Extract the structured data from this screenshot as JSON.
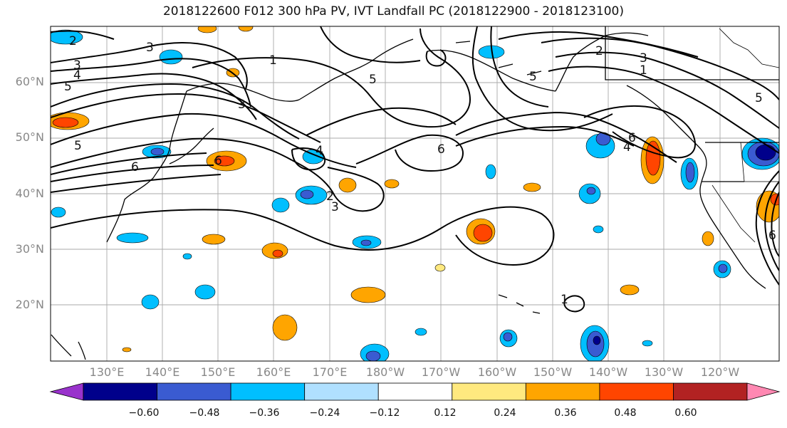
{
  "title": "2018122600 F012 300 hPa PV, IVT Landfall PC (2018122900 - 2018123100)",
  "lat_labels": [
    "60°N",
    "50°N",
    "40°N",
    "30°N",
    "20°N"
  ],
  "lon_labels": [
    "130°E",
    "140°E",
    "150°E",
    "160°E",
    "170°E",
    "180°W",
    "170°W",
    "160°W",
    "150°W",
    "140°W",
    "130°W",
    "120°W"
  ],
  "colorbar": {
    "colors": [
      "#9932cc",
      "#00008b",
      "#3a5bd1",
      "#00bfff",
      "#b0e0ff",
      "#ffffff",
      "#ffe97f",
      "#ffa500",
      "#ff4500",
      "#b22222",
      "#ff88b2"
    ],
    "ticks": [
      "−0.60",
      "−0.48",
      "−0.36",
      "−0.24",
      "−0.12",
      "0.12",
      "0.24",
      "0.36",
      "0.48",
      "0.60"
    ]
  },
  "contour_labels": [
    "2",
    "3",
    "4",
    "5",
    "1",
    "3",
    "5",
    "6",
    "3",
    "5",
    "6",
    "2",
    "3",
    "1",
    "5",
    "6",
    "4",
    "6",
    "4",
    "2",
    "3",
    "1",
    "5",
    "6"
  ]
}
